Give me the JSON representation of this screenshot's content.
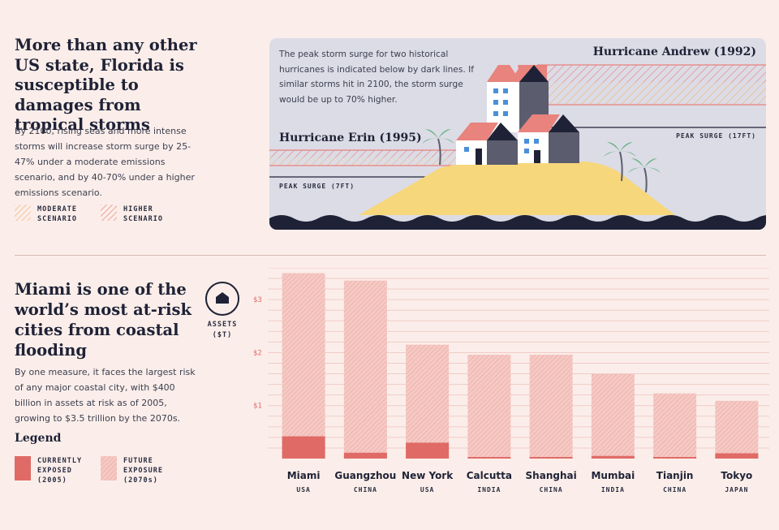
{
  "top": {
    "title": "More than any other US state, Florida is susceptible to damages from tropical storms",
    "body": "By 2100, rising seas and more intense storms will increase storm surge by 25-47% under a moderate emissions scenario, and by 40-70% under a higher emissions scenario.",
    "legend": [
      {
        "label": "MODERATE SCENARIO",
        "color": "#f4c48a"
      },
      {
        "label": "HIGHER SCENARIO",
        "color": "#e8837d"
      }
    ]
  },
  "panel": {
    "note": "The peak storm surge for two historical hurricanes is indicated below by dark lines. If similar storms hit in 2100, the storm surge would be up to 70% higher.",
    "andrew": {
      "title": "Hurricane Andrew (1992)",
      "peak": "PEAK SURGE (17FT)",
      "surge_ft": 17
    },
    "erin": {
      "title": "Hurricane Erin (1995)",
      "peak": "PEAK SURGE (7FT)",
      "surge_ft": 7
    },
    "colors": {
      "bg": "#dcdce6",
      "sand": "#f6d77c",
      "water": "#1f2236",
      "roof": "#e8837d",
      "wall": "#5b5c6e"
    }
  },
  "bottom": {
    "title": "Miami is one of the world’s most at-risk cities from coastal flooding",
    "body": "By one measure, it faces the largest risk of any major coastal city, with $400 billion in assets at risk as of 2005, growing to $3.5 trillion by the 2070s.",
    "legend_heading": "Legend",
    "legend": [
      {
        "label": "CURRENTLY EXPOSED (2005)",
        "color": "#e06a66"
      },
      {
        "label": "FUTURE EXPOSURE (2070s)",
        "color": "#f0b3ae"
      }
    ],
    "assets_label": "ASSETS ($T)",
    "assets_icon": "house-icon"
  },
  "chart_data": {
    "type": "bar",
    "ylabel": "ASSETS ($T)",
    "ylim": [
      0,
      3.6
    ],
    "yticks": [
      {
        "value": 1,
        "label": "$1"
      },
      {
        "value": 2,
        "label": "$2"
      },
      {
        "value": 3,
        "label": "$3"
      }
    ],
    "grid": true,
    "categories": [
      {
        "city": "Miami",
        "country": "USA"
      },
      {
        "city": "Guangzhou",
        "country": "CHINA"
      },
      {
        "city": "New York",
        "country": "USA"
      },
      {
        "city": "Calcutta",
        "country": "INDIA"
      },
      {
        "city": "Shanghai",
        "country": "CHINA"
      },
      {
        "city": "Mumbai",
        "country": "INDIA"
      },
      {
        "city": "Tianjin",
        "country": "CHINA"
      },
      {
        "city": "Tokyo",
        "country": "JAPAN"
      }
    ],
    "series": [
      {
        "name": "CURRENTLY EXPOSED (2005)",
        "values": [
          0.42,
          0.11,
          0.3,
          0.03,
          0.03,
          0.05,
          0.03,
          0.1
        ],
        "color": "#e06a66"
      },
      {
        "name": "FUTURE EXPOSURE (2070s)",
        "values": [
          3.5,
          3.36,
          2.15,
          1.96,
          1.96,
          1.6,
          1.23,
          1.09
        ],
        "color": "#f0b3ae"
      }
    ]
  }
}
